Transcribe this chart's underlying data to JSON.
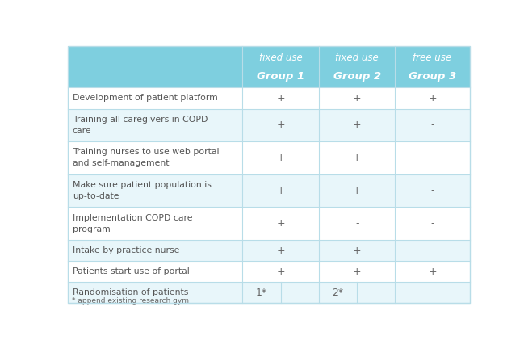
{
  "header_bg": "#7ecfdf",
  "row_bg_even": "#e8f6fa",
  "row_bg_odd": "#ffffff",
  "header_text_color": "#ffffff",
  "cell_text_color": "#666666",
  "row_label_color": "#555555",
  "line_color": "#b8dde8",
  "col_headers_line1": [
    "fixed use",
    "fixed use",
    "free use"
  ],
  "col_headers_line2": [
    "Group 1",
    "Group 2",
    "Group 3"
  ],
  "rows": [
    {
      "label": "Development of patient platform",
      "vals": [
        "+",
        "+",
        "+"
      ],
      "tall": false
    },
    {
      "label": "Training all caregivers in COPD\ncare",
      "vals": [
        "+",
        "+",
        "-"
      ],
      "tall": true
    },
    {
      "label": "Training nurses to use web portal\nand self-management",
      "vals": [
        "+",
        "+",
        "-"
      ],
      "tall": true
    },
    {
      "label": "Make sure patient population is\nup-to-date",
      "vals": [
        "+",
        "+",
        "-"
      ],
      "tall": true
    },
    {
      "label": "Implementation COPD care\nprogram",
      "vals": [
        "+",
        "-",
        "-"
      ],
      "tall": true
    },
    {
      "label": "Intake by practice nurse",
      "vals": [
        "+",
        "+",
        "-"
      ],
      "tall": false
    },
    {
      "label": "Patients start use of portal",
      "vals": [
        "+",
        "+",
        "+"
      ],
      "tall": false
    },
    {
      "label": "Randomisation of patients",
      "vals": [
        "1*",
        "2*",
        ""
      ],
      "tall": false,
      "split": true
    }
  ],
  "footnote": "* append existing research gym",
  "figsize": [
    6.49,
    4.37
  ]
}
